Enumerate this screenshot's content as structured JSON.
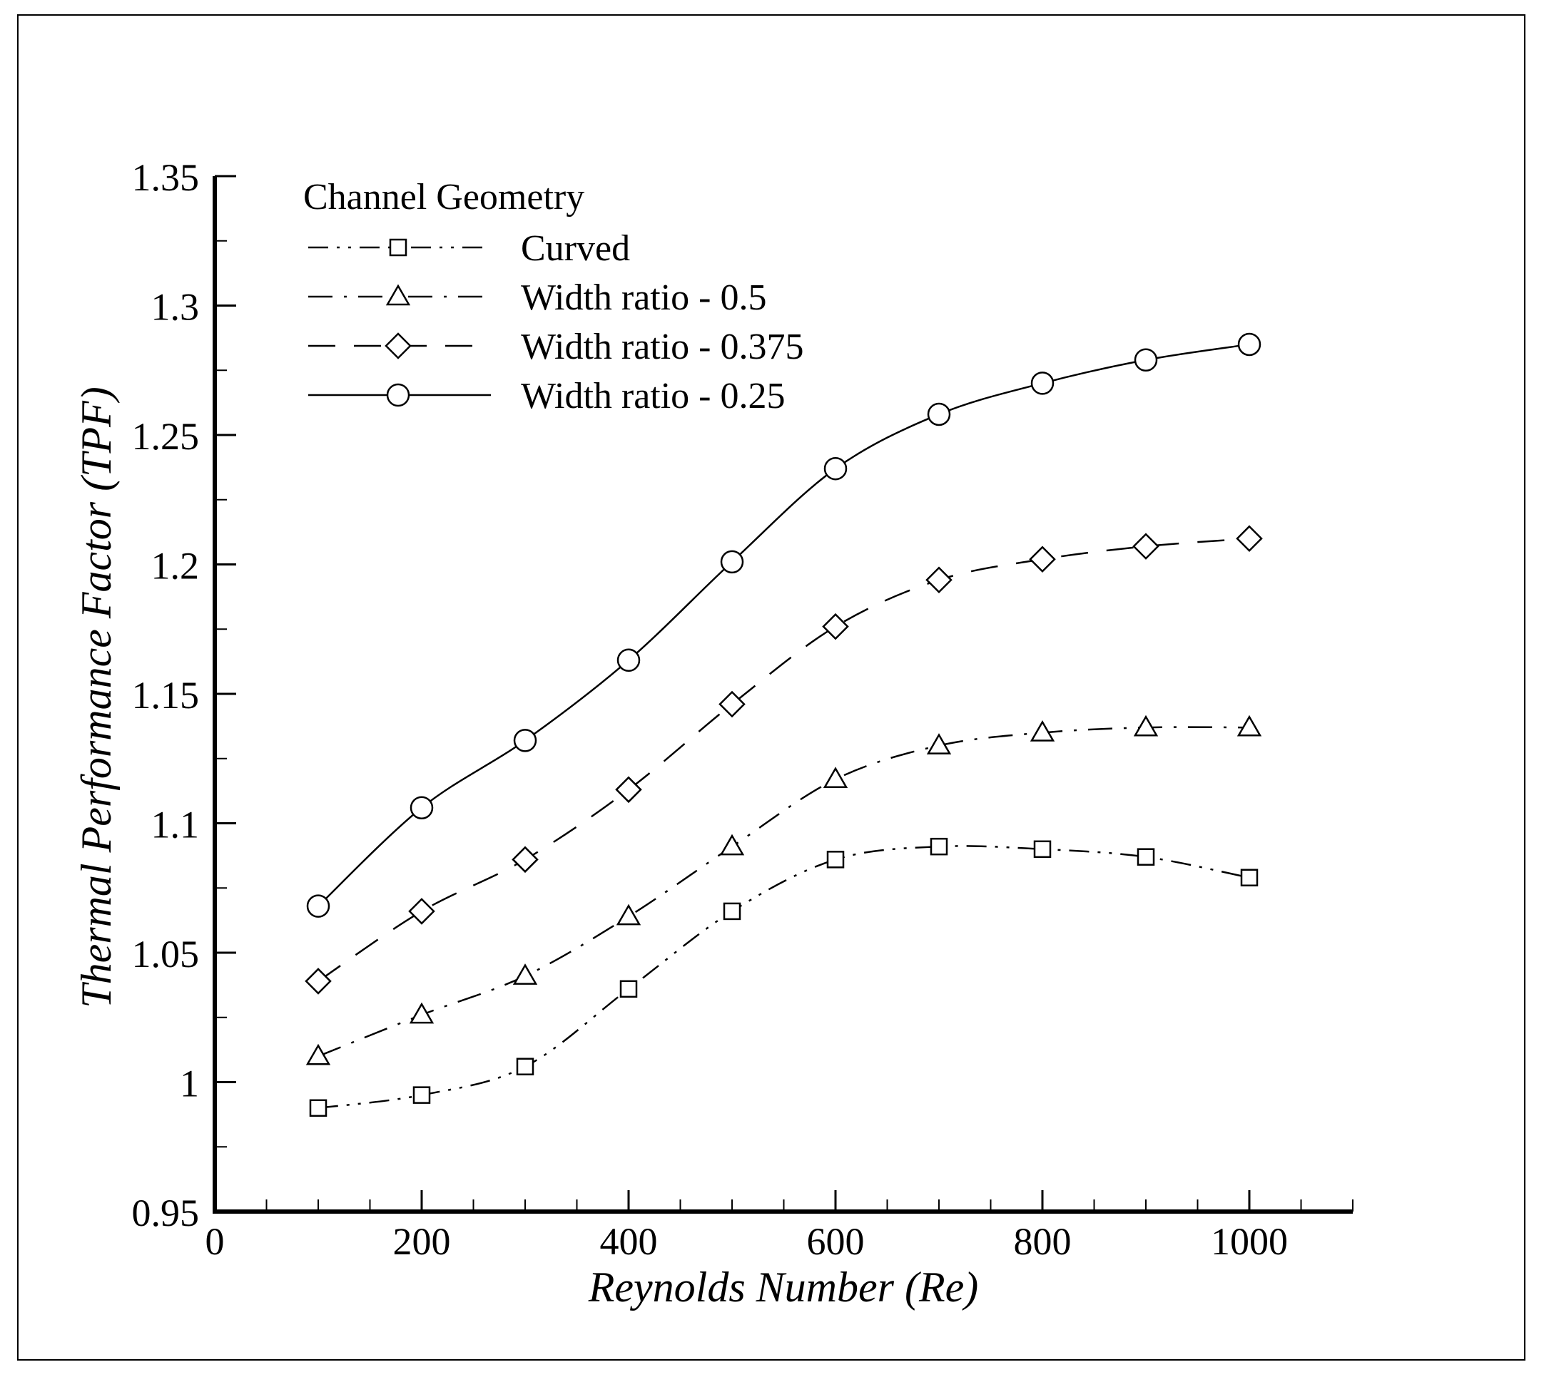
{
  "chart_data": {
    "type": "line",
    "title": "",
    "xlabel": "Reynolds Number (Re)",
    "ylabel": "Thermal Performance Factor (TPF)",
    "xlim": [
      0,
      1100
    ],
    "ylim": [
      0.95,
      1.35
    ],
    "xticks": [
      0,
      200,
      400,
      600,
      800,
      1000
    ],
    "xtick_labels": [
      "0",
      "200",
      "400",
      "600",
      "800",
      "1000"
    ],
    "yticks": [
      0.95,
      1.0,
      1.05,
      1.1,
      1.15,
      1.2,
      1.25,
      1.3,
      1.35
    ],
    "ytick_labels": [
      "0.95",
      "1",
      "1.05",
      "1.1",
      "1.15",
      "1.2",
      "1.25",
      "1.3",
      "1.35"
    ],
    "legend_title": "Channel Geometry",
    "legend_position": "top-left",
    "x": [
      100,
      200,
      300,
      400,
      500,
      600,
      700,
      800,
      900,
      1000
    ],
    "series": [
      {
        "name": "Curved",
        "marker": "square",
        "dash": "dash-dot-dot",
        "color": "#000000",
        "values": [
          0.99,
          0.995,
          1.006,
          1.036,
          1.066,
          1.086,
          1.091,
          1.09,
          1.087,
          1.079
        ]
      },
      {
        "name": "Width ratio - 0.5",
        "marker": "triangle",
        "dash": "dash-dot",
        "color": "#000000",
        "values": [
          1.01,
          1.026,
          1.041,
          1.064,
          1.091,
          1.117,
          1.13,
          1.135,
          1.137,
          1.137
        ]
      },
      {
        "name": "Width ratio - 0.375",
        "marker": "diamond",
        "dash": "dash",
        "color": "#000000",
        "values": [
          1.039,
          1.066,
          1.086,
          1.113,
          1.146,
          1.176,
          1.194,
          1.202,
          1.207,
          1.21
        ]
      },
      {
        "name": "Width ratio - 0.25",
        "marker": "circle",
        "dash": "solid",
        "color": "#000000",
        "values": [
          1.068,
          1.106,
          1.132,
          1.163,
          1.201,
          1.237,
          1.258,
          1.27,
          1.279,
          1.285
        ]
      }
    ]
  }
}
